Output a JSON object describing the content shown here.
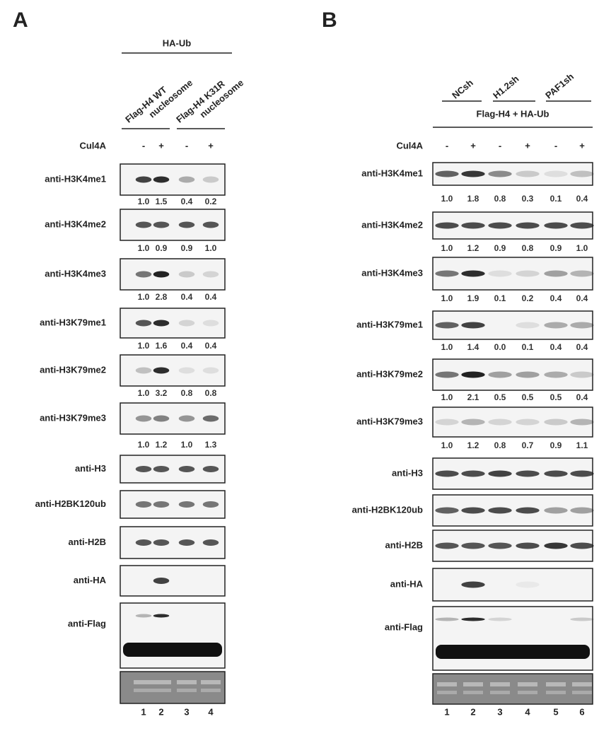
{
  "panels": [
    {
      "label": "A",
      "header": "HA-Ub",
      "groups": [
        {
          "lines": [
            "Flag-H4 WT",
            "nucleosome"
          ]
        },
        {
          "lines": [
            "Flag-H4 K31R",
            "nucleosome"
          ]
        }
      ],
      "cul4a": {
        "label": "Cul4A",
        "signs": [
          "-",
          "+",
          "-",
          "+"
        ]
      },
      "blots": [
        {
          "antibody": "anti-H3K4me1",
          "quant": [
            "1.0",
            "1.5",
            "0.4",
            "0.2"
          ]
        },
        {
          "antibody": "anti-H3K4me2",
          "quant": [
            "1.0",
            "0.9",
            "0.9",
            "1.0"
          ]
        },
        {
          "antibody": "anti-H3K4me3",
          "quant": [
            "1.0",
            "2.8",
            "0.4",
            "0.4"
          ]
        },
        {
          "antibody": "anti-H3K79me1",
          "quant": [
            "1.0",
            "1.6",
            "0.4",
            "0.4"
          ]
        },
        {
          "antibody": "anti-H3K79me2",
          "quant": [
            "1.0",
            "3.2",
            "0.8",
            "0.8"
          ]
        },
        {
          "antibody": "anti-H3K79me3",
          "quant": [
            "1.0",
            "1.2",
            "1.0",
            "1.3"
          ]
        },
        {
          "antibody": "anti-H3"
        },
        {
          "antibody": "anti-H2BK120ub"
        },
        {
          "antibody": "anti-H2B"
        },
        {
          "antibody": "anti-HA"
        },
        {
          "antibody": "anti-Flag"
        }
      ],
      "lanes": [
        1,
        2,
        3,
        4
      ]
    },
    {
      "label": "B",
      "header": "Flag-H4 + HA-Ub",
      "groups": [
        {
          "lines": [
            "NCsh"
          ]
        },
        {
          "lines": [
            "H1.2sh"
          ]
        },
        {
          "lines": [
            "PAF1sh"
          ]
        }
      ],
      "cul4a": {
        "label": "Cul4A",
        "signs": [
          "-",
          "+",
          "-",
          "+",
          "-",
          "+"
        ]
      },
      "blots": [
        {
          "antibody": "anti-H3K4me1",
          "quant": [
            "1.0",
            "1.8",
            "0.8",
            "0.3",
            "0.1",
            "0.4"
          ]
        },
        {
          "antibody": "anti-H3K4me2",
          "quant": [
            "1.0",
            "1.2",
            "0.9",
            "0.8",
            "0.9",
            "1.0"
          ]
        },
        {
          "antibody": "anti-H3K4me3",
          "quant": [
            "1.0",
            "1.9",
            "0.1",
            "0.2",
            "0.4",
            "0.4"
          ]
        },
        {
          "antibody": "anti-H3K79me1",
          "quant": [
            "1.0",
            "1.4",
            "0.0",
            "0.1",
            "0.4",
            "0.4"
          ]
        },
        {
          "antibody": "anti-H3K79me2",
          "quant": [
            "1.0",
            "2.1",
            "0.5",
            "0.5",
            "0.5",
            "0.4"
          ]
        },
        {
          "antibody": "anti-H3K79me3",
          "quant": [
            "1.0",
            "1.2",
            "0.8",
            "0.7",
            "0.9",
            "1.1"
          ]
        },
        {
          "antibody": "anti-H3"
        },
        {
          "antibody": "anti-H2BK120ub"
        },
        {
          "antibody": "anti-H2B"
        },
        {
          "antibody": "anti-HA"
        },
        {
          "antibody": "anti-Flag"
        }
      ],
      "lanes": [
        1,
        2,
        3,
        4,
        5,
        6
      ]
    }
  ]
}
